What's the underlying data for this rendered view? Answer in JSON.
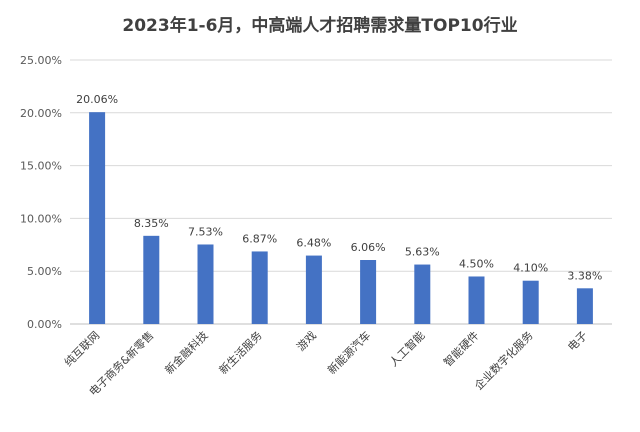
{
  "chart_data": {
    "type": "bar",
    "title": "2023年1-6月，中高端人才招聘需求量TOP10行业",
    "xlabel": "",
    "ylabel": "",
    "ylim": [
      0,
      25
    ],
    "y_ticks": [
      "0.00%",
      "5.00%",
      "10.00%",
      "15.00%",
      "20.00%",
      "25.00%"
    ],
    "y_tick_values": [
      0,
      5,
      10,
      15,
      20,
      25
    ],
    "grid": true,
    "legend": "none",
    "bar_color": "#4472C4",
    "categories": [
      "纯互联网",
      "电子商务&新零售",
      "新金融科技",
      "新生活服务",
      "游戏",
      "新能源汽车",
      "人工智能",
      "智能硬件",
      "企业数字化服务",
      "电子"
    ],
    "values": [
      20.06,
      8.35,
      7.53,
      6.87,
      6.48,
      6.06,
      5.63,
      4.5,
      4.1,
      3.38
    ],
    "data_labels": [
      "20.06%",
      "8.35%",
      "7.53%",
      "6.87%",
      "6.48%",
      "6.06%",
      "5.63%",
      "4.50%",
      "4.10%",
      "3.38%"
    ]
  }
}
